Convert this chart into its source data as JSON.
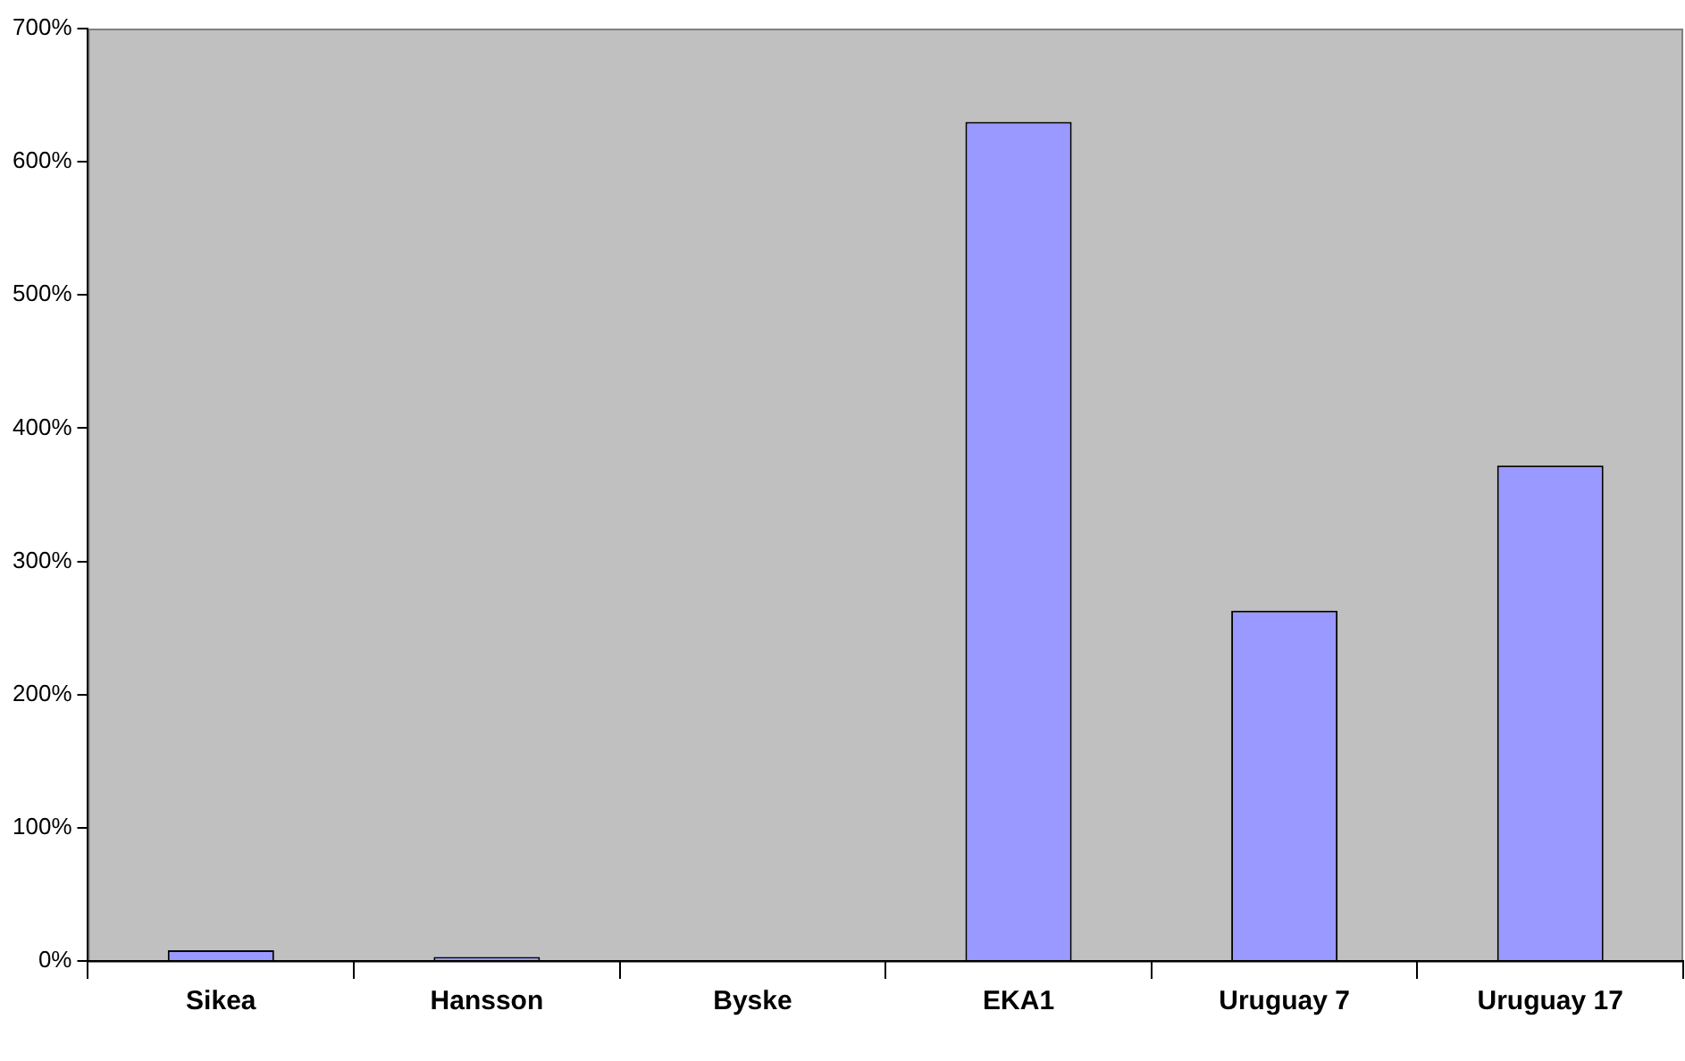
{
  "chart_data": {
    "type": "bar",
    "categories": [
      "Sikea",
      "Hansson",
      "Byske",
      "EKA1",
      "Uruguay 7",
      "Uruguay 17"
    ],
    "values": [
      8,
      3,
      0,
      630,
      263,
      372
    ],
    "color": "#9999ff",
    "ylim": [
      0,
      700
    ],
    "yticks": [
      {
        "value": 0,
        "label": "0%"
      },
      {
        "value": 100,
        "label": "100%"
      },
      {
        "value": 200,
        "label": "200%"
      },
      {
        "value": 300,
        "label": "300%"
      },
      {
        "value": 400,
        "label": "400%"
      },
      {
        "value": 500,
        "label": "500%"
      },
      {
        "value": 600,
        "label": "600%"
      },
      {
        "value": 700,
        "label": "700%"
      }
    ],
    "grid": false,
    "legend": false
  }
}
